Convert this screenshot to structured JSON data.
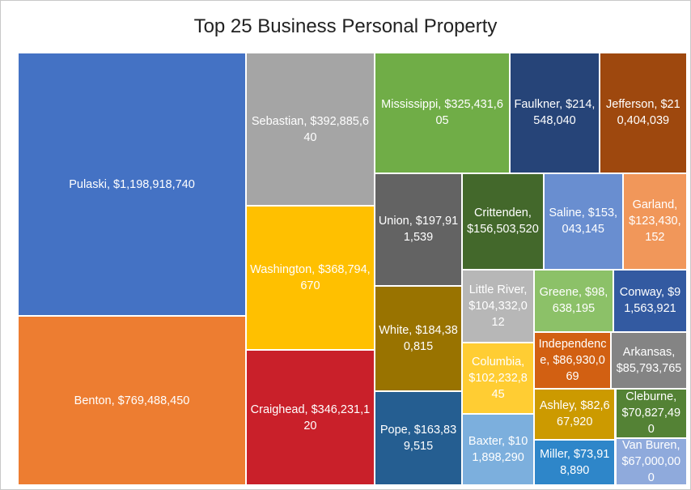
{
  "chart_data": {
    "type": "treemap",
    "title": "Top 25 Business Personal Property",
    "labels": [
      "Pulaski, $1,198,918,740",
      "Benton, $769,488,450",
      "Sebastian, $392,885,640",
      "Washington, $368,794,670",
      "Craighead, $346,231,120",
      "Mississippi, $325,431,605",
      "Faulkner, $214,548,040",
      "Jefferson, $210,404,039",
      "Union, $197,911,539",
      "White, $184,380,815",
      "Pope, $163,839,515",
      "Crittenden, $156,503,520",
      "Saline, $153,043,145",
      "Garland, $123,430,152",
      "Little River, $104,332,012",
      "Columbia, $102,232,845",
      "Baxter, $101,898,290",
      "Greene, $98,638,195",
      "Conway, $91,563,921",
      "Independence, $86,930,069",
      "Arkansas, $85,793,765",
      "Ashley, $82,667,920",
      "Miller, $73,918,890",
      "Cleburne, $70,827,490",
      "Van Buren, $67,000,000"
    ],
    "values": [
      1198918740,
      769488450,
      392885640,
      368794670,
      346231120,
      325431605,
      214548040,
      210404039,
      197911539,
      184380815,
      163839515,
      156503520,
      153043145,
      123430152,
      104332012,
      102232845,
      101898290,
      98638195,
      91563921,
      86930069,
      85793765,
      82667920,
      73918890,
      70827490,
      67000000
    ],
    "colors": [
      "#4472c4",
      "#ed7d31",
      "#a5a5a5",
      "#ffc000",
      "#c9202a",
      "#70ad47",
      "#264478",
      "#9e480e",
      "#636363",
      "#997300",
      "#255e91",
      "#43682b",
      "#698ed0",
      "#f1975a",
      "#b7b7b7",
      "#ffcd33",
      "#7cafdd",
      "#8cc168",
      "#335aa1",
      "#d26012",
      "#848484",
      "#cc9a00",
      "#2e86c9",
      "#548235",
      "#8faadc"
    ]
  }
}
